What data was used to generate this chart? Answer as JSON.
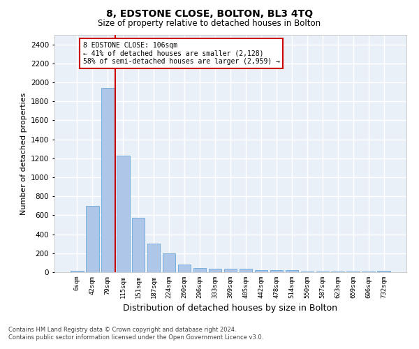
{
  "title": "8, EDSTONE CLOSE, BOLTON, BL3 4TQ",
  "subtitle": "Size of property relative to detached houses in Bolton",
  "xlabel": "Distribution of detached houses by size in Bolton",
  "ylabel": "Number of detached properties",
  "bar_color": "#aec6e8",
  "bar_edge_color": "#5a9fd4",
  "background_color": "#eaf0f8",
  "grid_color": "#ffffff",
  "annotation_box_color": "#cc0000",
  "property_line_color": "#cc0000",
  "annotation_text": "8 EDSTONE CLOSE: 106sqm\n← 41% of detached houses are smaller (2,128)\n58% of semi-detached houses are larger (2,959) →",
  "footer_text": "Contains HM Land Registry data © Crown copyright and database right 2024.\nContains public sector information licensed under the Open Government Licence v3.0.",
  "bin_labels": [
    "6sqm",
    "42sqm",
    "79sqm",
    "115sqm",
    "151sqm",
    "187sqm",
    "224sqm",
    "260sqm",
    "296sqm",
    "333sqm",
    "369sqm",
    "405sqm",
    "442sqm",
    "478sqm",
    "514sqm",
    "550sqm",
    "587sqm",
    "623sqm",
    "659sqm",
    "696sqm",
    "732sqm"
  ],
  "bar_values": [
    15,
    700,
    1940,
    1225,
    570,
    305,
    200,
    80,
    45,
    38,
    35,
    35,
    25,
    20,
    20,
    5,
    5,
    5,
    5,
    5,
    15
  ],
  "ylim": [
    0,
    2500
  ],
  "yticks": [
    0,
    200,
    400,
    600,
    800,
    1000,
    1200,
    1400,
    1600,
    1800,
    2000,
    2200,
    2400
  ],
  "property_line_x": 2.5,
  "figsize": [
    6.0,
    5.0
  ],
  "dpi": 100
}
